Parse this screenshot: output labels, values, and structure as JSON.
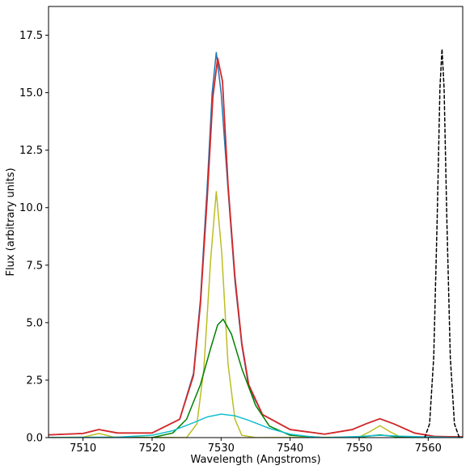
{
  "chart_data": {
    "type": "line",
    "title": "",
    "xlabel": "Wavelength (Angstroms)",
    "ylabel": "Flux (arbitrary units)",
    "xlim": [
      7505,
      7565
    ],
    "ylim": [
      0,
      18.75
    ],
    "x_ticks": [
      7510,
      7520,
      7530,
      7540,
      7550,
      7560
    ],
    "x_tick_labels": [
      "7510",
      "7520",
      "7530",
      "7540",
      "7550",
      "7560"
    ],
    "y_ticks": [
      0.0,
      2.5,
      5.0,
      7.5,
      10.0,
      12.5,
      15.0,
      17.5
    ],
    "y_tick_labels": [
      "0.0",
      "2.5",
      "5.0",
      "7.5",
      "10.0",
      "12.5",
      "15.0",
      "17.5"
    ],
    "grid": false,
    "legend": "none",
    "series": [
      {
        "color": "#1f77b4",
        "style": "solid",
        "x": [
          7505,
          7510,
          7512.3,
          7515,
          7520,
          7524,
          7526,
          7527,
          7528,
          7528.7,
          7529.3,
          7530,
          7531,
          7532,
          7533,
          7534,
          7536,
          7540,
          7545,
          7549,
          7551,
          7553,
          7555,
          7558,
          7561,
          7563,
          7565
        ],
        "y": [
          0.12,
          0.18,
          0.35,
          0.2,
          0.2,
          0.8,
          2.8,
          6.0,
          11.0,
          15.0,
          16.75,
          15.0,
          10.8,
          6.8,
          4.0,
          2.2,
          1.0,
          0.35,
          0.15,
          0.35,
          0.6,
          0.82,
          0.6,
          0.2,
          0.05,
          0.04,
          0.03
        ]
      },
      {
        "color": "#d62728",
        "style": "solid",
        "x": [
          7505,
          7510,
          7512.3,
          7515,
          7520,
          7524,
          7526,
          7527,
          7528,
          7528.8,
          7529.5,
          7530.2,
          7531,
          7532,
          7533,
          7534,
          7536,
          7540,
          7545,
          7549,
          7551,
          7553,
          7555,
          7558,
          7561,
          7563,
          7565
        ],
        "y": [
          0.12,
          0.18,
          0.35,
          0.2,
          0.2,
          0.8,
          2.7,
          5.8,
          10.5,
          14.8,
          16.5,
          15.5,
          11.0,
          7.0,
          4.1,
          2.3,
          1.0,
          0.35,
          0.15,
          0.35,
          0.6,
          0.82,
          0.6,
          0.2,
          0.05,
          0.04,
          0.03
        ]
      },
      {
        "color": "#bcbd22",
        "style": "solid",
        "x": [
          7505,
          7510,
          7512.3,
          7514.5,
          7525,
          7526.5,
          7527.5,
          7528.5,
          7529.3,
          7530.1,
          7531,
          7532,
          7533,
          7535,
          7550,
          7551.5,
          7553,
          7554.5,
          7556,
          7565
        ],
        "y": [
          0.0,
          0.02,
          0.18,
          0.02,
          0.0,
          0.6,
          3.0,
          7.8,
          10.7,
          8.0,
          3.2,
          0.8,
          0.1,
          0.0,
          0.02,
          0.25,
          0.52,
          0.25,
          0.02,
          0.0
        ]
      },
      {
        "color": "#008000",
        "style": "solid",
        "x": [
          7505,
          7520,
          7523,
          7525,
          7527,
          7528.5,
          7529.5,
          7530.3,
          7531.5,
          7533,
          7535,
          7537,
          7540,
          7545,
          7550,
          7553,
          7556,
          7565
        ],
        "y": [
          0.0,
          0.0,
          0.2,
          0.8,
          2.3,
          3.9,
          4.9,
          5.15,
          4.5,
          3.0,
          1.4,
          0.5,
          0.1,
          0.0,
          0.02,
          0.12,
          0.02,
          0.0
        ]
      },
      {
        "color": "#17becf",
        "style": "solid",
        "x": [
          7505,
          7515,
          7520,
          7523,
          7526,
          7528,
          7530,
          7532,
          7534,
          7537,
          7540,
          7543,
          7545,
          7550,
          7553,
          7556,
          7565
        ],
        "y": [
          0.0,
          0.02,
          0.1,
          0.3,
          0.65,
          0.9,
          1.02,
          0.95,
          0.75,
          0.4,
          0.15,
          0.04,
          0.0,
          0.05,
          0.1,
          0.06,
          0.0
        ]
      },
      {
        "color": "#000000",
        "style": "dashed",
        "x": [
          7559.5,
          7560.2,
          7560.8,
          7561.3,
          7561.7,
          7562.0,
          7562.3,
          7562.7,
          7563.2,
          7563.8,
          7564.5
        ],
        "y": [
          0.0,
          0.6,
          3.5,
          9.5,
          15.2,
          16.9,
          15.2,
          9.5,
          3.5,
          0.6,
          0.0
        ]
      }
    ]
  }
}
